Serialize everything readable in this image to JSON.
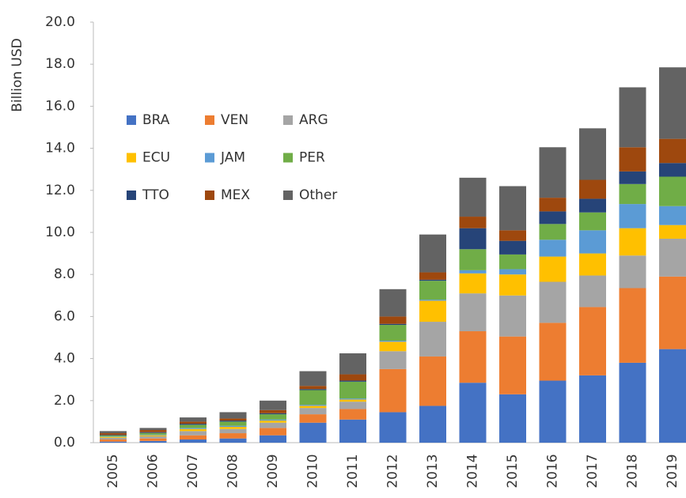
{
  "chart_data": {
    "type": "stacked_bar",
    "y_label": "Billion USD",
    "categories": [
      "2005",
      "2006",
      "2007",
      "2008",
      "2009",
      "2010",
      "2011",
      "2012",
      "2013",
      "2014",
      "2015",
      "2016",
      "2017",
      "2018",
      "2019"
    ],
    "series": [
      {
        "name": "BRA",
        "color": "#4472c4",
        "values": [
          0.05,
          0.08,
          0.15,
          0.2,
          0.35,
          0.95,
          1.1,
          1.45,
          1.75,
          2.85,
          2.3,
          2.95,
          3.2,
          3.8,
          4.45
        ]
      },
      {
        "name": "VEN",
        "color": "#ed7d31",
        "values": [
          0.1,
          0.12,
          0.2,
          0.25,
          0.35,
          0.4,
          0.5,
          2.05,
          2.35,
          2.45,
          2.75,
          2.75,
          3.25,
          3.55,
          3.45
        ]
      },
      {
        "name": "ARG",
        "color": "#a5a5a5",
        "values": [
          0.08,
          0.1,
          0.2,
          0.2,
          0.25,
          0.3,
          0.35,
          0.85,
          1.65,
          1.8,
          1.95,
          1.95,
          1.5,
          1.55,
          1.8
        ]
      },
      {
        "name": "ECU",
        "color": "#ffc000",
        "values": [
          0.04,
          0.05,
          0.1,
          0.1,
          0.1,
          0.1,
          0.1,
          0.45,
          1.0,
          0.95,
          1.0,
          1.2,
          1.05,
          1.3,
          0.65
        ]
      },
      {
        "name": "JAM",
        "color": "#5b9bd5",
        "values": [
          0.02,
          0.03,
          0.05,
          0.05,
          0.05,
          0.05,
          0.05,
          0.05,
          0.05,
          0.15,
          0.25,
          0.8,
          1.1,
          1.15,
          0.9
        ]
      },
      {
        "name": "PER",
        "color": "#70ad47",
        "values": [
          0.05,
          0.08,
          0.15,
          0.2,
          0.25,
          0.7,
          0.8,
          0.75,
          0.9,
          1.0,
          0.7,
          0.75,
          0.85,
          0.95,
          1.4
        ]
      },
      {
        "name": "TTO",
        "color": "#264478",
        "values": [
          0.03,
          0.04,
          0.05,
          0.05,
          0.05,
          0.05,
          0.05,
          0.05,
          0.05,
          1.0,
          0.65,
          0.6,
          0.65,
          0.6,
          0.65
        ]
      },
      {
        "name": "MEX",
        "color": "#9e480e",
        "values": [
          0.08,
          0.1,
          0.1,
          0.1,
          0.15,
          0.15,
          0.3,
          0.35,
          0.35,
          0.55,
          0.5,
          0.65,
          0.9,
          1.15,
          1.15
        ]
      },
      {
        "name": "Other",
        "color": "#636363",
        "values": [
          0.1,
          0.1,
          0.2,
          0.3,
          0.45,
          0.7,
          1.0,
          1.3,
          1.8,
          1.85,
          2.1,
          2.4,
          2.45,
          2.85,
          3.4
        ]
      }
    ],
    "ylim": [
      0,
      20
    ],
    "yticks": [
      {
        "value": 0,
        "label": "0.0"
      },
      {
        "value": 2,
        "label": "2.0"
      },
      {
        "value": 4,
        "label": "4.0"
      },
      {
        "value": 6,
        "label": "6.0"
      },
      {
        "value": 8,
        "label": "8.0"
      },
      {
        "value": 10,
        "label": "10.0"
      },
      {
        "value": 12,
        "label": "12.0"
      },
      {
        "value": 14,
        "label": "14.0"
      },
      {
        "value": 16,
        "label": "16.0"
      },
      {
        "value": 18,
        "label": "18.0"
      },
      {
        "value": 20,
        "label": "20.0"
      }
    ],
    "legend": "upper left",
    "grid": false
  }
}
